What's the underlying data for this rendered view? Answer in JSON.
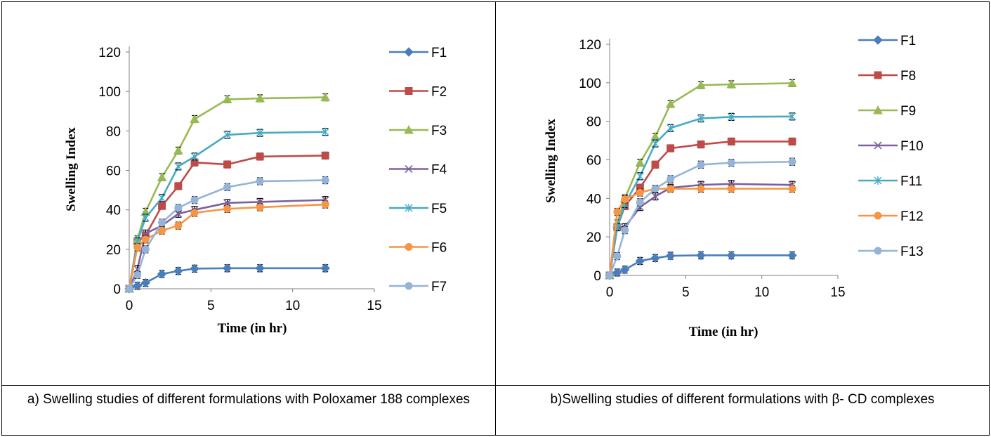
{
  "colors": {
    "F1": "#4a7ebb",
    "F2": "#be4b48",
    "F3": "#98b954",
    "F4": "#7d60a0",
    "F5": "#46aac5",
    "F6": "#f69544",
    "F7": "#95b3d7",
    "F8": "#be4b48",
    "F9": "#98b954",
    "F10": "#7d60a0",
    "F11": "#46aac5",
    "F12": "#f69544",
    "F13": "#95b3d7"
  },
  "chart_data": [
    {
      "type": "line",
      "title": "",
      "xlabel": "Time (in hr)",
      "ylabel": "Swelling Index",
      "xlim": [
        0,
        15
      ],
      "ylim": [
        0,
        120
      ],
      "xticks": [
        0,
        5,
        10,
        15
      ],
      "yticks": [
        0,
        20,
        40,
        60,
        80,
        100,
        120
      ],
      "legend_position": "right",
      "grid": false,
      "x": [
        0,
        0.5,
        1,
        2,
        3,
        4,
        6,
        8,
        12
      ],
      "series": [
        {
          "name": "F1",
          "marker": "diamond",
          "values": [
            0,
            1.5,
            3,
            7.5,
            9,
            10.2,
            10.4,
            10.4,
            10.4
          ]
        },
        {
          "name": "F2",
          "marker": "square",
          "values": [
            0,
            24,
            27,
            42,
            52,
            64,
            63,
            67,
            67.5
          ]
        },
        {
          "name": "F3",
          "marker": "triangle",
          "values": [
            0,
            25,
            39,
            56.5,
            70,
            86,
            96,
            96.5,
            97
          ]
        },
        {
          "name": "F4",
          "marker": "x",
          "values": [
            0,
            10,
            28,
            32,
            38,
            40,
            43.5,
            44,
            45
          ]
        },
        {
          "name": "F5",
          "marker": "star",
          "values": [
            0,
            24,
            36,
            46,
            62,
            67,
            78,
            79,
            79.5
          ]
        },
        {
          "name": "F6",
          "marker": "circle",
          "values": [
            0,
            21,
            25,
            29.5,
            32,
            38.5,
            40.5,
            41.3,
            42.7
          ]
        },
        {
          "name": "F7",
          "marker": "circle",
          "values": [
            0,
            7,
            20,
            33.5,
            41,
            45,
            51.5,
            54.5,
            55
          ]
        }
      ]
    },
    {
      "type": "line",
      "title": "",
      "xlabel": "Time (in hr)",
      "ylabel": "Swelling Index",
      "xlim": [
        0,
        15
      ],
      "ylim": [
        0,
        120
      ],
      "xticks": [
        0,
        5,
        10,
        15
      ],
      "yticks": [
        0,
        20,
        40,
        60,
        80,
        100,
        120
      ],
      "legend_position": "right",
      "grid": false,
      "x": [
        0,
        0.5,
        1,
        2,
        3,
        4,
        6,
        8,
        12
      ],
      "series": [
        {
          "name": "F1",
          "marker": "diamond",
          "values": [
            0,
            1.5,
            3,
            7.5,
            9,
            10.2,
            10.4,
            10.4,
            10.4
          ]
        },
        {
          "name": "F8",
          "marker": "square",
          "values": [
            0,
            25,
            36,
            45.5,
            57.5,
            66,
            68,
            69.5,
            69.5
          ]
        },
        {
          "name": "F9",
          "marker": "triangle",
          "values": [
            0,
            27,
            40,
            58.5,
            72,
            89,
            98.8,
            99.2,
            99.8
          ]
        },
        {
          "name": "F10",
          "marker": "x",
          "values": [
            0,
            25,
            25,
            35.5,
            41,
            45.5,
            47,
            47.5,
            47
          ]
        },
        {
          "name": "F11",
          "marker": "star",
          "values": [
            0,
            25,
            37,
            51.5,
            68.5,
            76.5,
            81.5,
            82.3,
            82.5
          ]
        },
        {
          "name": "F12",
          "marker": "circle",
          "values": [
            0,
            33,
            39.5,
            43,
            45,
            45,
            45,
            45,
            45
          ]
        },
        {
          "name": "F13",
          "marker": "circle",
          "values": [
            0,
            10,
            23.5,
            38,
            45,
            50,
            57.5,
            58.5,
            59
          ]
        }
      ]
    }
  ],
  "captions": {
    "a": "a) Swelling studies of different formulations  with Poloxamer 188    complexes",
    "b": "b)Swelling studies of different formulations with β- CD complexes"
  }
}
